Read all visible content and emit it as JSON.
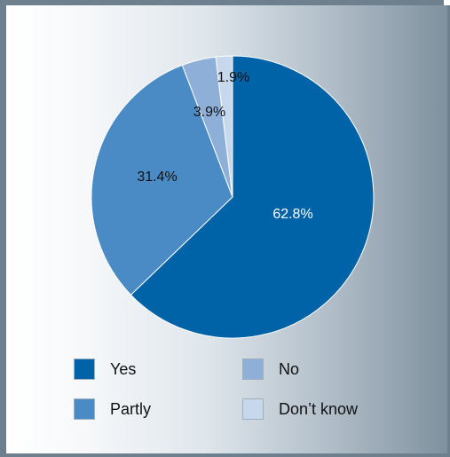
{
  "chart_data": {
    "type": "pie",
    "categories": [
      "Yes",
      "Partly",
      "No",
      "Don’t know"
    ],
    "values": [
      62.8,
      31.4,
      3.9,
      1.9
    ],
    "value_labels": [
      "62.8%",
      "31.4%",
      "3.9%",
      "1.9%"
    ],
    "colors": [
      "#0063a8",
      "#4a8bc5",
      "#8eb0d8",
      "#c7d7ec"
    ],
    "label_colors": [
      "#ffffff",
      "#111111",
      "#111111",
      "#111111"
    ],
    "start": "12 o'clock",
    "direction": "clockwise",
    "legend_position": "bottom"
  },
  "legend": {
    "items": [
      {
        "label": "Yes",
        "color": "#0063a8"
      },
      {
        "label": "No",
        "color": "#8eb0d8"
      },
      {
        "label": "Partly",
        "color": "#4a8bc5"
      },
      {
        "label": "Don’t know",
        "color": "#c7d7ec"
      }
    ]
  }
}
